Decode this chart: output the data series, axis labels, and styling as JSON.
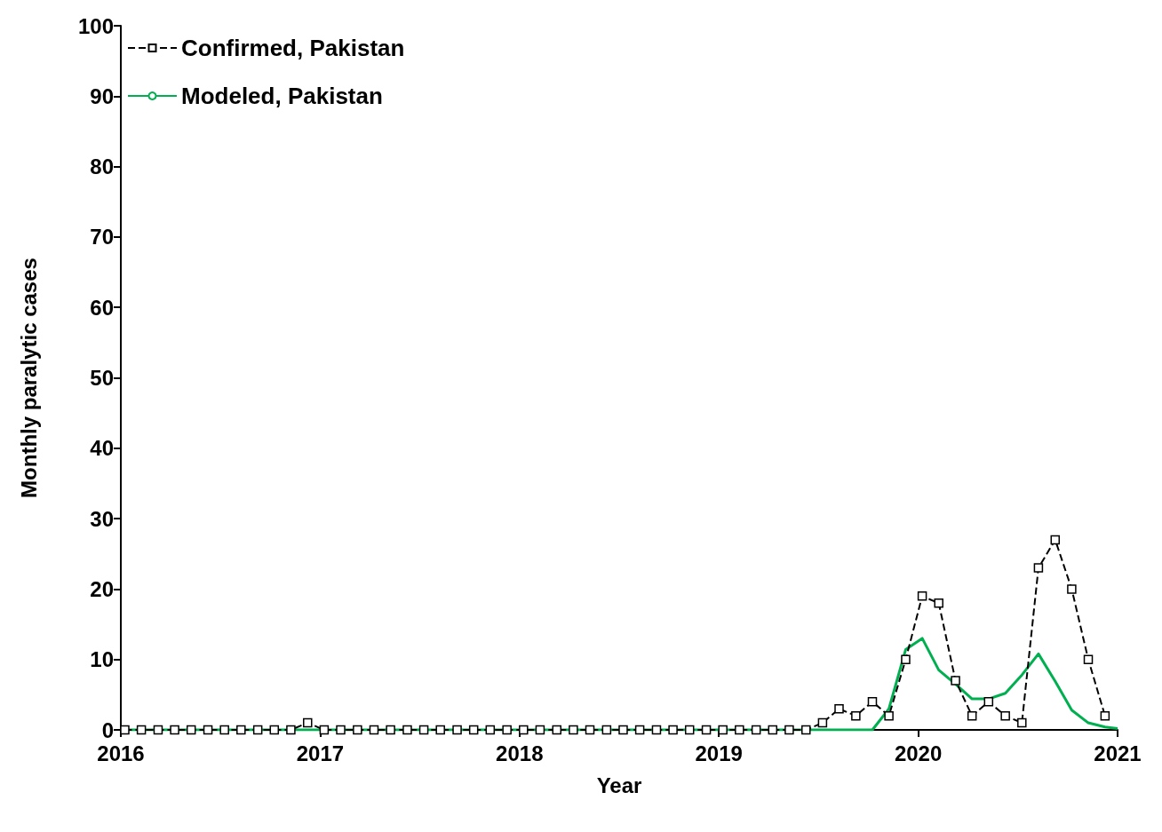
{
  "chart_data": {
    "type": "line",
    "xlabel": "Year",
    "ylabel": "Monthly paralytic cases",
    "x": [
      2016.02,
      2016.103,
      2016.187,
      2016.27,
      2016.353,
      2016.437,
      2016.52,
      2016.603,
      2016.687,
      2016.77,
      2016.853,
      2016.937,
      2017.02,
      2017.103,
      2017.187,
      2017.27,
      2017.353,
      2017.437,
      2017.52,
      2017.603,
      2017.687,
      2017.77,
      2017.853,
      2017.937,
      2018.02,
      2018.103,
      2018.187,
      2018.27,
      2018.353,
      2018.437,
      2018.52,
      2018.603,
      2018.687,
      2018.77,
      2018.853,
      2018.937,
      2019.02,
      2019.103,
      2019.187,
      2019.27,
      2019.353,
      2019.437,
      2019.52,
      2019.603,
      2019.687,
      2019.77,
      2019.853,
      2019.937,
      2020.02,
      2020.103,
      2020.187,
      2020.27,
      2020.353,
      2020.437,
      2020.52,
      2020.603,
      2020.687,
      2020.77,
      2020.853,
      2020.937
    ],
    "series": [
      {
        "name": "Confirmed, Pakistan",
        "color": "#000000",
        "marker": "square",
        "line_style": "dashed",
        "values": [
          0,
          0,
          0,
          0,
          0,
          0,
          0,
          0,
          0,
          0,
          0,
          1,
          0,
          0,
          0,
          0,
          0,
          0,
          0,
          0,
          0,
          0,
          0,
          0,
          0,
          0,
          0,
          0,
          0,
          0,
          0,
          0,
          0,
          0,
          0,
          0,
          0,
          0,
          0,
          0,
          0,
          0,
          1,
          3,
          2,
          4,
          2,
          10,
          19,
          18,
          7,
          2,
          4,
          2,
          1,
          23,
          27,
          20,
          10,
          2
        ]
      },
      {
        "name": "Modeled, Pakistan",
        "color": "#00b050",
        "marker": "none",
        "line_style": "solid",
        "x": [
          2016.02,
          2016.103,
          2016.187,
          2016.27,
          2016.353,
          2016.437,
          2016.52,
          2016.603,
          2016.687,
          2016.77,
          2016.853,
          2016.937,
          2017.02,
          2017.103,
          2017.187,
          2017.27,
          2017.353,
          2017.437,
          2017.52,
          2017.603,
          2017.687,
          2017.77,
          2017.853,
          2017.937,
          2018.02,
          2018.103,
          2018.187,
          2018.27,
          2018.353,
          2018.437,
          2018.52,
          2018.603,
          2018.687,
          2018.77,
          2018.853,
          2018.937,
          2019.02,
          2019.103,
          2019.187,
          2019.27,
          2019.353,
          2019.437,
          2019.52,
          2019.603,
          2019.687,
          2019.77,
          2019.853,
          2019.937,
          2020.02,
          2020.103,
          2020.187,
          2020.27,
          2020.353,
          2020.437,
          2020.52,
          2020.603,
          2020.687,
          2020.77,
          2020.853,
          2020.937,
          2021
        ],
        "values": [
          0,
          0,
          0,
          0,
          0,
          0,
          0,
          0,
          0,
          0,
          0,
          0,
          0,
          0,
          0,
          0,
          0,
          0,
          0,
          0,
          0,
          0,
          0,
          0,
          0,
          0,
          0,
          0,
          0,
          0,
          0,
          0,
          0,
          0,
          0,
          0,
          0,
          0,
          0,
          0,
          0,
          0,
          0,
          0,
          0,
          0,
          3,
          11.4,
          13,
          8.5,
          6.5,
          4.4,
          4.4,
          5.2,
          7.8,
          10.8,
          6.9,
          2.8,
          1,
          0.4,
          0.2
        ]
      }
    ],
    "xlim": [
      2016,
      2021
    ],
    "xticks": [
      2016,
      2017,
      2018,
      2019,
      2020,
      2021
    ],
    "ylim": [
      0,
      100
    ],
    "yticks": [
      0,
      10,
      20,
      30,
      40,
      50,
      60,
      70,
      80,
      90,
      100
    ],
    "grid": false,
    "legend": "top left"
  }
}
